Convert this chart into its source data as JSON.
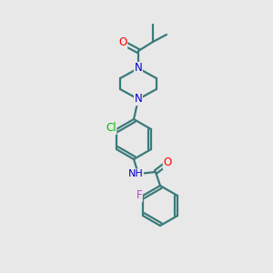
{
  "bg_color": "#e8e8e8",
  "bond_color": "#3a7a7a",
  "bond_width": 1.6,
  "atom_colors": {
    "O": "#ff0000",
    "N": "#0000cc",
    "Cl": "#00bb00",
    "F": "#bb44cc",
    "C": "#1a1a1a",
    "H": "#1a1a1a"
  },
  "font_size": 8.5
}
